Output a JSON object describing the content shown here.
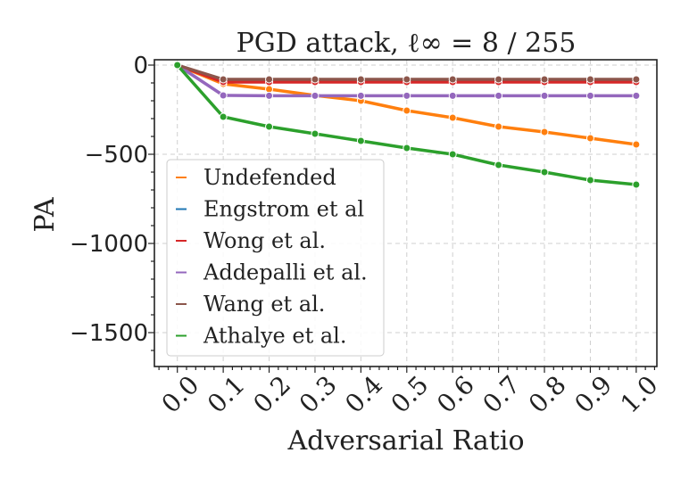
{
  "chart_data": {
    "type": "line",
    "title": "PGD attack, ℓ∞ = 8 / 255",
    "xlabel": "Adversarial Ratio",
    "ylabel": "PA",
    "x": [
      0.0,
      0.1,
      0.2,
      0.3,
      0.4,
      0.5,
      0.6,
      0.7,
      0.8,
      0.9,
      1.0
    ],
    "x_tick_labels": [
      "0.0",
      "0.1",
      "0.2",
      "0.3",
      "0.4",
      "0.5",
      "0.6",
      "0.7",
      "0.8",
      "0.9",
      "1.0"
    ],
    "xlim": [
      -0.05,
      1.045
    ],
    "ylim": [
      -1690,
      30
    ],
    "y_ticks": [
      0,
      -500,
      -1000,
      -1500
    ],
    "y_tick_labels": [
      "0",
      "−500",
      "−1000",
      "−1500"
    ],
    "grid": true,
    "legend_position": "lower-left",
    "series": [
      {
        "name": "Undefended",
        "color": "#ff7f0e",
        "values": [
          0,
          -105,
          -135,
          -170,
          -200,
          -255,
          -295,
          -345,
          -375,
          -410,
          -445
        ]
      },
      {
        "name": "Engstrom et al",
        "color": "#1f77b4",
        "values": [
          0,
          -85,
          -85,
          -85,
          -85,
          -85,
          -85,
          -85,
          -85,
          -85,
          -85
        ]
      },
      {
        "name": "Wong et al.",
        "color": "#d62728",
        "values": [
          0,
          -95,
          -95,
          -95,
          -95,
          -95,
          -95,
          -95,
          -95,
          -95,
          -95
        ]
      },
      {
        "name": "Addepalli et al.",
        "color": "#9467bd",
        "values": [
          0,
          -170,
          -172,
          -172,
          -172,
          -172,
          -172,
          -172,
          -172,
          -172,
          -172
        ]
      },
      {
        "name": "Wang et al.",
        "color": "#8c564b",
        "values": [
          0,
          -80,
          -80,
          -80,
          -80,
          -80,
          -80,
          -80,
          -80,
          -80,
          -80
        ]
      },
      {
        "name": "Athalye et al.",
        "color": "#2ca02c",
        "values": [
          0,
          -290,
          -345,
          -385,
          -425,
          -465,
          -500,
          -560,
          -600,
          -645,
          -670
        ]
      }
    ]
  }
}
